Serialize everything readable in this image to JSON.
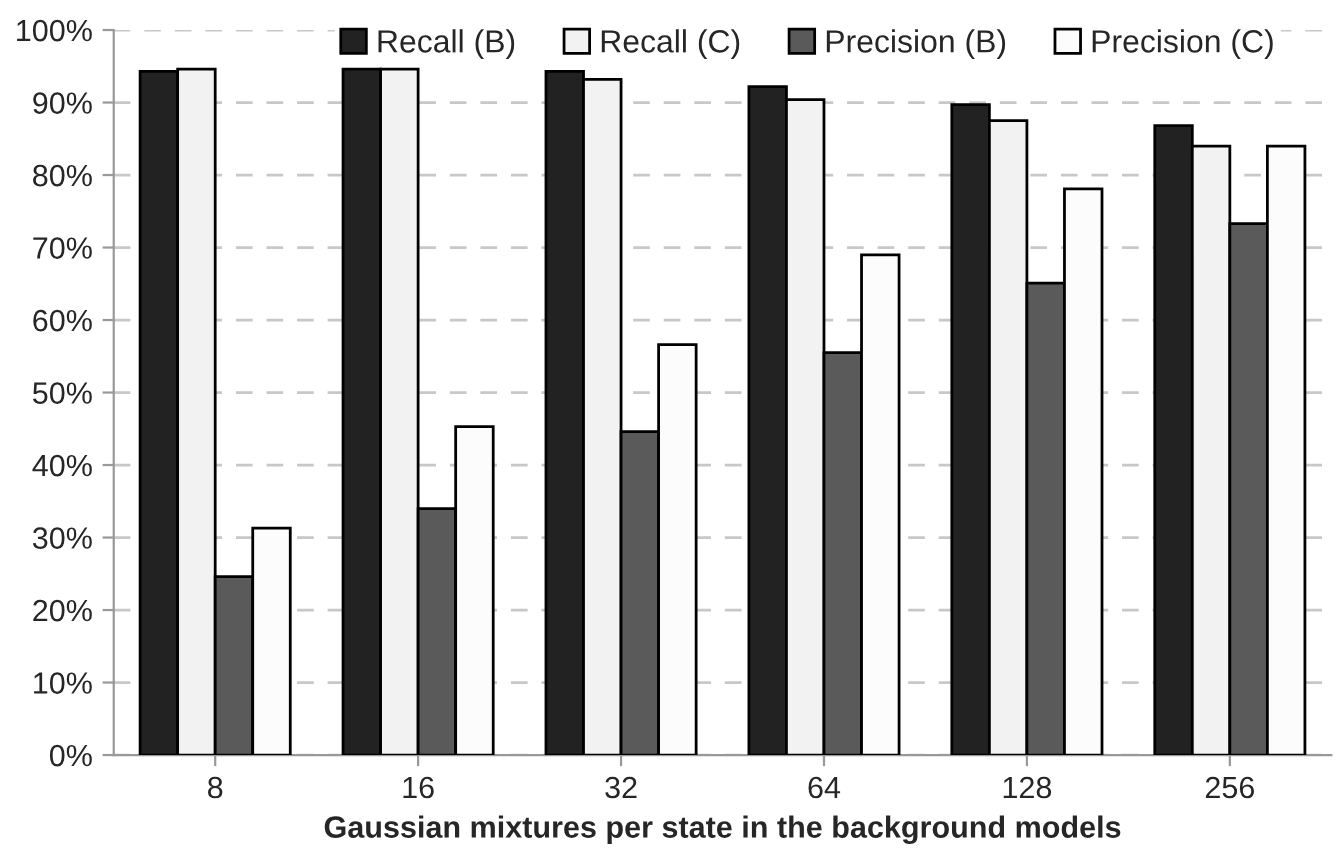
{
  "chart_data": {
    "type": "bar",
    "xlabel": "Gaussian mixtures per state in the background models",
    "categories": [
      "8",
      "16",
      "32",
      "64",
      "128",
      "256"
    ],
    "series": [
      {
        "name": "Recall (B)",
        "color": "#222222",
        "values": [
          94.3,
          94.6,
          94.3,
          92.2,
          89.7,
          86.8
        ]
      },
      {
        "name": "Recall (C)",
        "color": "#f2f2f2",
        "values": [
          94.6,
          94.6,
          93.2,
          90.4,
          87.5,
          84.0
        ]
      },
      {
        "name": "Precision (B)",
        "color": "#5a5a5a",
        "values": [
          24.6,
          34.0,
          44.6,
          55.5,
          65.1,
          73.3
        ]
      },
      {
        "name": "Precision (C)",
        "color": "#fcfcfc",
        "values": [
          31.3,
          45.3,
          56.6,
          69.0,
          78.1,
          84.0
        ]
      }
    ],
    "ylim": [
      0,
      100
    ],
    "yticks": [
      {
        "value": 0,
        "label": "0%"
      },
      {
        "value": 10,
        "label": "10%"
      },
      {
        "value": 20,
        "label": "20%"
      },
      {
        "value": 30,
        "label": "30%"
      },
      {
        "value": 40,
        "label": "40%"
      },
      {
        "value": 50,
        "label": "50%"
      },
      {
        "value": 60,
        "label": "60%"
      },
      {
        "value": 70,
        "label": "70%"
      },
      {
        "value": 80,
        "label": "80%"
      },
      {
        "value": 90,
        "label": "90%"
      },
      {
        "value": 100,
        "label": "100%"
      }
    ],
    "grid": "y",
    "legend": "top"
  }
}
